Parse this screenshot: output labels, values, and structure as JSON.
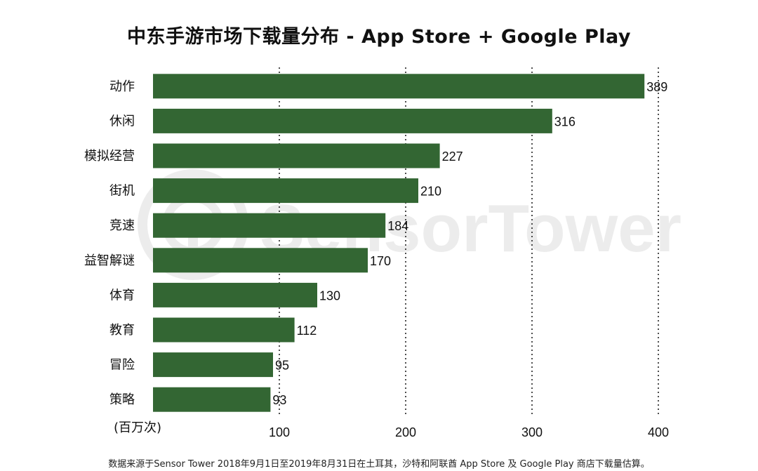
{
  "chart_data": {
    "type": "bar",
    "orientation": "horizontal",
    "title": "中东手游市场下载量分布 - App Store + Google Play",
    "categories": [
      "动作",
      "休闲",
      "模拟经营",
      "街机",
      "竞速",
      "益智解谜",
      "体育",
      "教育",
      "冒险",
      "策略"
    ],
    "values": [
      389,
      316,
      227,
      210,
      184,
      170,
      130,
      112,
      95,
      93
    ],
    "xlabel": "(百万次)",
    "ylabel": "",
    "xticks": [
      100,
      200,
      300,
      400
    ],
    "xlim": [
      0,
      400
    ],
    "grid": "vertical-dotted",
    "bar_color": "#336633",
    "footnote": "数据来源于Sensor Tower 2018年9月1日至2019年8月31日在土耳其，沙特和阿联酋 App Store 及 Google Play 商店下载量估算。"
  },
  "watermark": {
    "text": "SensorTower",
    "icon": "sensor-tower-logo-icon"
  }
}
